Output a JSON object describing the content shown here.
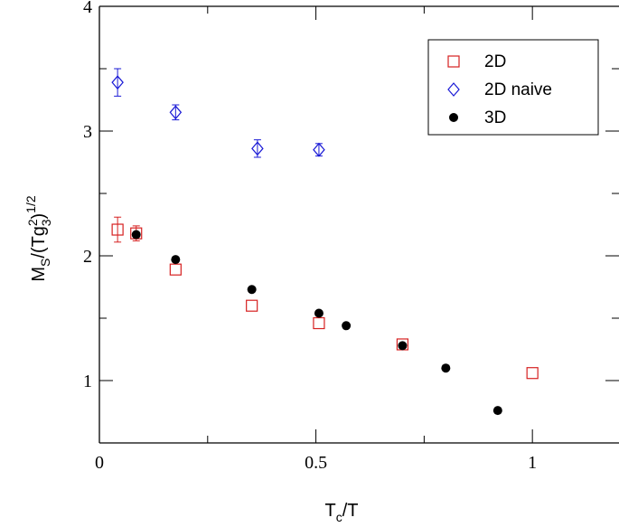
{
  "chart_data": {
    "type": "scatter",
    "title": "",
    "xlabel": {
      "main": "T",
      "sub": "c",
      "rest": "/T"
    },
    "ylabel": {
      "m": "M",
      "s_sub": "S",
      "open": "/(Tg",
      "sup2": "2",
      "three_sub": "3",
      "close": ")",
      "power": "1/2"
    },
    "xlim": [
      0,
      1.2
    ],
    "ylim": [
      0.5,
      4
    ],
    "x_major_ticks": [
      0,
      0.5,
      1
    ],
    "x_tick_labels": [
      "0",
      "0.5",
      "1"
    ],
    "x_minor_ticks": [
      0.25,
      0.75
    ],
    "y_major_ticks": [
      1,
      2,
      3,
      4
    ],
    "y_tick_labels": [
      "1",
      "2",
      "3",
      "4"
    ],
    "y_minor_ticks": [
      1.5,
      2.5,
      3.5
    ],
    "grid": false,
    "legend_position": "top-right",
    "series": [
      {
        "name": "2D",
        "marker": "open-square",
        "color": "#d62020",
        "points": [
          {
            "x": 0.042,
            "y": 2.21,
            "err": 0.1
          },
          {
            "x": 0.085,
            "y": 2.18,
            "err": 0.06
          },
          {
            "x": 0.176,
            "y": 1.89,
            "err": 0
          },
          {
            "x": 0.352,
            "y": 1.6,
            "err": 0
          },
          {
            "x": 0.507,
            "y": 1.46,
            "err": 0
          },
          {
            "x": 0.7,
            "y": 1.29,
            "err": 0
          },
          {
            "x": 1.0,
            "y": 1.06,
            "err": 0
          }
        ]
      },
      {
        "name": "2D naive",
        "marker": "open-diamond",
        "color": "#1a1ad6",
        "points": [
          {
            "x": 0.042,
            "y": 3.39,
            "err": 0.11
          },
          {
            "x": 0.176,
            "y": 3.15,
            "err": 0.06
          },
          {
            "x": 0.365,
            "y": 2.86,
            "err": 0.07
          },
          {
            "x": 0.507,
            "y": 2.85,
            "err": 0.05
          }
        ]
      },
      {
        "name": "3D",
        "marker": "filled-circle",
        "color": "#000000",
        "points": [
          {
            "x": 0.085,
            "y": 2.17,
            "err": 0
          },
          {
            "x": 0.176,
            "y": 1.97,
            "err": 0
          },
          {
            "x": 0.352,
            "y": 1.73,
            "err": 0
          },
          {
            "x": 0.507,
            "y": 1.54,
            "err": 0
          },
          {
            "x": 0.57,
            "y": 1.44,
            "err": 0
          },
          {
            "x": 0.7,
            "y": 1.28,
            "err": 0
          },
          {
            "x": 0.8,
            "y": 1.1,
            "err": 0
          },
          {
            "x": 0.92,
            "y": 0.76,
            "err": 0
          }
        ]
      }
    ]
  }
}
